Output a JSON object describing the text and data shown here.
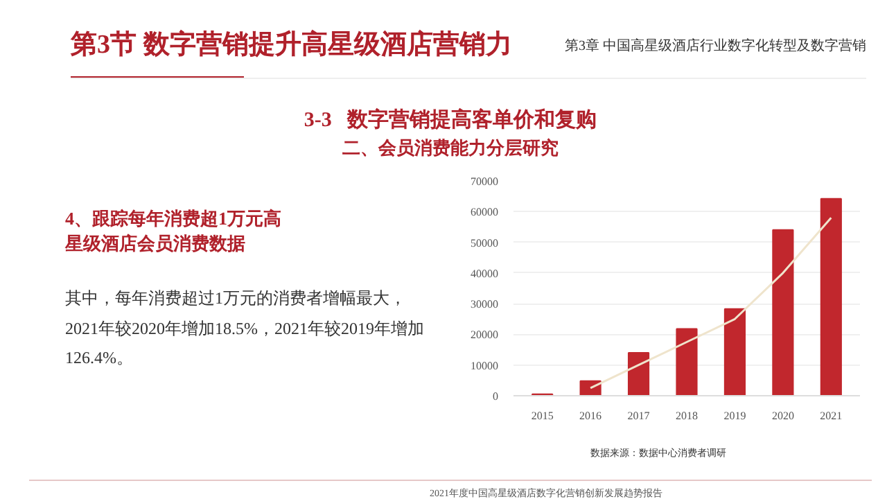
{
  "chart_data": {
    "type": "bar",
    "title": "4、跟踪每年消费超1万元高星级酒店会员消费数据",
    "categories": [
      "2015",
      "2016",
      "2017",
      "2018",
      "2019",
      "2020",
      "2021"
    ],
    "series": [
      {
        "color": "#c1272d",
        "values": [
          500,
          4800,
          14000,
          21800,
          28300,
          54000,
          64200
        ]
      },
      {
        "type": "line",
        "color": "#efe4cc",
        "values": [
          null,
          2500,
          10000,
          17500,
          25000,
          40000,
          58000
        ]
      }
    ],
    "ylim": [
      0,
      70000
    ],
    "yticks": [
      0,
      10000,
      20000,
      30000,
      40000,
      50000,
      60000,
      70000
    ],
    "grid": "y",
    "annotations": [
      "第3节 数字营销提升高星级酒店营销力",
      "第3章  中国高星级酒店行业数字化转型及数字营销",
      "3-3   数字营销提高客单价和复购",
      "二、会员消费能力分层研究",
      "其中，每年消费超过1万元的消费者增幅最大，2021年较2020年增加18.5%，2021年较2019年增加126.4%。",
      "数据来源：数据中心消费者调研",
      "2021年度中国高星级酒店数字化营销创新发展趋势报告"
    ]
  }
}
